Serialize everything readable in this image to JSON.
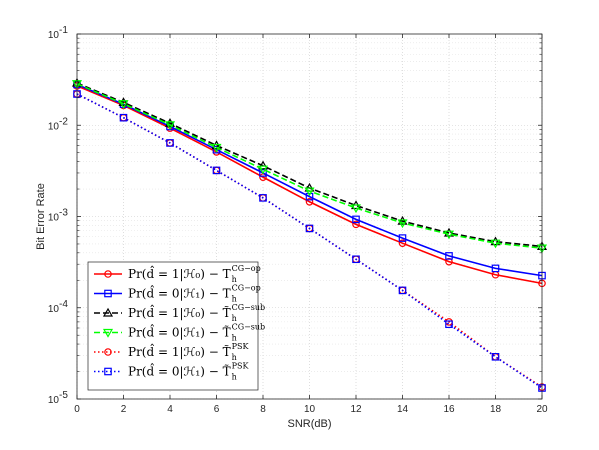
{
  "chart_data": {
    "type": "line",
    "xlabel": "SNR(dB)",
    "ylabel": "Bit Error Rate",
    "xlim": [
      0,
      20
    ],
    "ylim": [
      1e-05,
      0.1
    ],
    "yscale": "log",
    "grid": true,
    "legend_position": "bottom-left",
    "x_ticks": [
      0,
      2,
      4,
      6,
      8,
      10,
      12,
      14,
      16,
      18,
      20
    ],
    "x_tick_labels": [
      "0",
      "2",
      "4",
      "6",
      "8",
      "10",
      "12",
      "14",
      "16",
      "18",
      "20"
    ],
    "y_ticks": [
      1e-05,
      0.0001,
      0.001,
      0.01,
      0.1
    ],
    "y_tick_labels": [
      {
        "base": "10",
        "exp": "-5"
      },
      {
        "base": "10",
        "exp": "-4"
      },
      {
        "base": "10",
        "exp": "-3"
      },
      {
        "base": "10",
        "exp": "-2"
      },
      {
        "base": "10",
        "exp": "-1"
      }
    ],
    "x": [
      0,
      2,
      4,
      6,
      8,
      10,
      12,
      14,
      16,
      18,
      20
    ],
    "series": [
      {
        "name_main": "Pr(d̂ = 1|ℋ₀) − T",
        "name_sub": "h",
        "name_sup": "CG−op",
        "color": "#ff0000",
        "line": "solid",
        "marker": "circle",
        "values": [
          0.027,
          0.0165,
          0.0093,
          0.0051,
          0.0027,
          0.00145,
          0.00082,
          0.00051,
          0.00032,
          0.00023,
          0.000185
        ]
      },
      {
        "name_main": "Pr(d̂ = 0|ℋ₁) − T",
        "name_sub": "h",
        "name_sup": "CG−op",
        "color": "#0000ff",
        "line": "solid",
        "marker": "square",
        "values": [
          0.028,
          0.017,
          0.0097,
          0.0054,
          0.003,
          0.00165,
          0.00093,
          0.00058,
          0.00037,
          0.00027,
          0.000225
        ]
      },
      {
        "name_main": "Pr(d̂ = 1|ℋ₀) − T̃",
        "name_sub": "h",
        "name_sup": "CG−sub",
        "color": "#000000",
        "line": "dashed",
        "marker": "triangle-up",
        "values": [
          0.029,
          0.0178,
          0.0105,
          0.006,
          0.0036,
          0.00205,
          0.00132,
          0.00089,
          0.00066,
          0.00053,
          0.00047
        ]
      },
      {
        "name_main": "Pr(d̂ = 0|ℋ₁) − T̃",
        "name_sub": "h",
        "name_sup": "CG−sub",
        "color": "#00ff00",
        "line": "dashed",
        "marker": "triangle-down",
        "values": [
          0.0285,
          0.0172,
          0.0101,
          0.0057,
          0.0033,
          0.0019,
          0.00124,
          0.00085,
          0.00064,
          0.00051,
          0.00045
        ]
      },
      {
        "name_main": "Pr(d̂ = 1|ℋ₀) − T̃",
        "name_sub": "h",
        "name_sup": "PSK",
        "color": "#ff0000",
        "line": "dotted",
        "marker": "circle",
        "values": [
          0.022,
          0.0121,
          0.0064,
          0.0032,
          0.0016,
          0.00074,
          0.00034,
          0.000155,
          7e-05,
          2.9e-05,
          1.35e-05
        ]
      },
      {
        "name_main": "Pr(d̂ = 0|ℋ₁) − T̃",
        "name_sub": "h",
        "name_sup": "PSK",
        "color": "#0000ff",
        "line": "dotted",
        "marker": "square",
        "values": [
          0.022,
          0.0121,
          0.0064,
          0.0032,
          0.0016,
          0.00074,
          0.00034,
          0.000155,
          6.6e-05,
          2.9e-05,
          1.32e-05
        ]
      }
    ]
  }
}
